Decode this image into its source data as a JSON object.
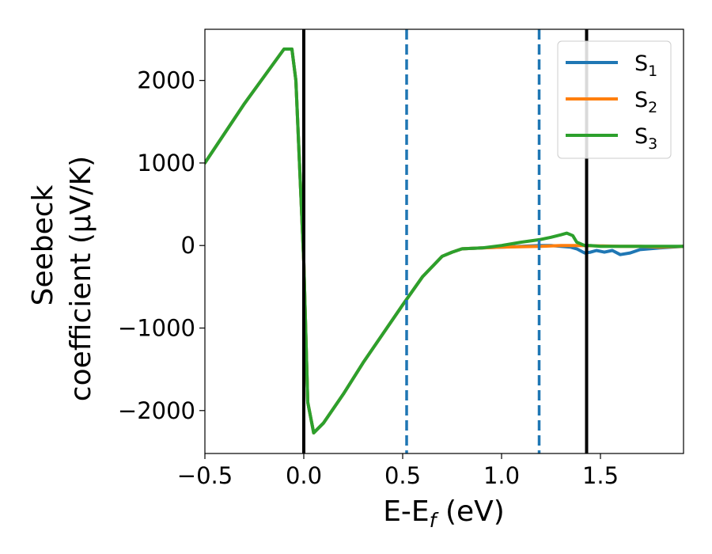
{
  "chart_data": {
    "type": "line",
    "xlabel": "E-E",
    "xlabel_sub": "f",
    "xlabel_unit": "(eV)",
    "ylabel_line1": "Seebeck",
    "ylabel_line2": "coefficient  (μV/K)",
    "xlim": [
      -0.5,
      1.92
    ],
    "ylim": [
      -2520,
      2620
    ],
    "x_ticks": [
      -0.5,
      0.0,
      0.5,
      1.0,
      1.5
    ],
    "x_tick_labels": [
      "−0.5",
      "0.0",
      "0.5",
      "1.0",
      "1.5"
    ],
    "y_ticks": [
      -2000,
      -1000,
      0,
      1000,
      2000
    ],
    "y_tick_labels": [
      "−2000",
      "−1000",
      "0",
      "1000",
      "2000"
    ],
    "grid": false,
    "legend_position": "top-right",
    "vertical_lines": [
      {
        "x": 0.0,
        "style": "solid",
        "color": "#000000"
      },
      {
        "x": 0.52,
        "style": "dashed",
        "color": "#1f77b4"
      },
      {
        "x": 1.19,
        "style": "dashed",
        "color": "#1f77b4"
      },
      {
        "x": 1.43,
        "style": "solid",
        "color": "#000000"
      }
    ],
    "series": [
      {
        "name": "S",
        "name_sub": "1",
        "color": "#1f77b4",
        "x": [
          -0.5,
          -0.3,
          -0.1,
          -0.06,
          -0.04,
          -0.02,
          0.0,
          0.02,
          0.05,
          0.1,
          0.2,
          0.3,
          0.4,
          0.5,
          0.6,
          0.7,
          0.75,
          0.8,
          0.9,
          1.0,
          1.1,
          1.19,
          1.25,
          1.3,
          1.35,
          1.38,
          1.42,
          1.45,
          1.48,
          1.52,
          1.56,
          1.6,
          1.65,
          1.7,
          1.8,
          1.92
        ],
        "y": [
          1000,
          1720,
          2380,
          2380,
          2000,
          900,
          -200,
          -1900,
          -2270,
          -2150,
          -1800,
          -1420,
          -1070,
          -720,
          -380,
          -130,
          -80,
          -40,
          -30,
          -20,
          -10,
          0,
          0,
          -10,
          -20,
          -40,
          -90,
          -80,
          -60,
          -80,
          -60,
          -110,
          -90,
          -50,
          -30,
          -10
        ]
      },
      {
        "name": "S",
        "name_sub": "2",
        "color": "#ff7f0e",
        "x": [
          -0.5,
          -0.3,
          -0.1,
          -0.06,
          -0.04,
          -0.02,
          0.0,
          0.02,
          0.05,
          0.1,
          0.2,
          0.3,
          0.4,
          0.5,
          0.6,
          0.7,
          0.75,
          0.8,
          0.9,
          1.0,
          1.1,
          1.2,
          1.3,
          1.4,
          1.5,
          1.6,
          1.7,
          1.8,
          1.92
        ],
        "y": [
          1000,
          1720,
          2380,
          2380,
          2000,
          900,
          -200,
          -1900,
          -2270,
          -2150,
          -1800,
          -1420,
          -1070,
          -720,
          -380,
          -130,
          -80,
          -40,
          -30,
          -20,
          -15,
          -10,
          0,
          0,
          -5,
          -10,
          -10,
          -20,
          -10
        ]
      },
      {
        "name": "S",
        "name_sub": "3",
        "color": "#2ca02c",
        "x": [
          -0.5,
          -0.3,
          -0.1,
          -0.06,
          -0.04,
          -0.02,
          0.0,
          0.02,
          0.05,
          0.1,
          0.2,
          0.3,
          0.4,
          0.5,
          0.6,
          0.7,
          0.75,
          0.8,
          0.9,
          1.0,
          1.1,
          1.19,
          1.25,
          1.3,
          1.33,
          1.36,
          1.38,
          1.42,
          1.45,
          1.5,
          1.6,
          1.7,
          1.8,
          1.92
        ],
        "y": [
          1000,
          1720,
          2380,
          2380,
          2000,
          900,
          -200,
          -1900,
          -2270,
          -2150,
          -1800,
          -1420,
          -1070,
          -720,
          -380,
          -130,
          -80,
          -40,
          -30,
          0,
          40,
          70,
          100,
          130,
          150,
          120,
          40,
          0,
          0,
          -10,
          -10,
          -10,
          -10,
          -10
        ]
      }
    ]
  }
}
